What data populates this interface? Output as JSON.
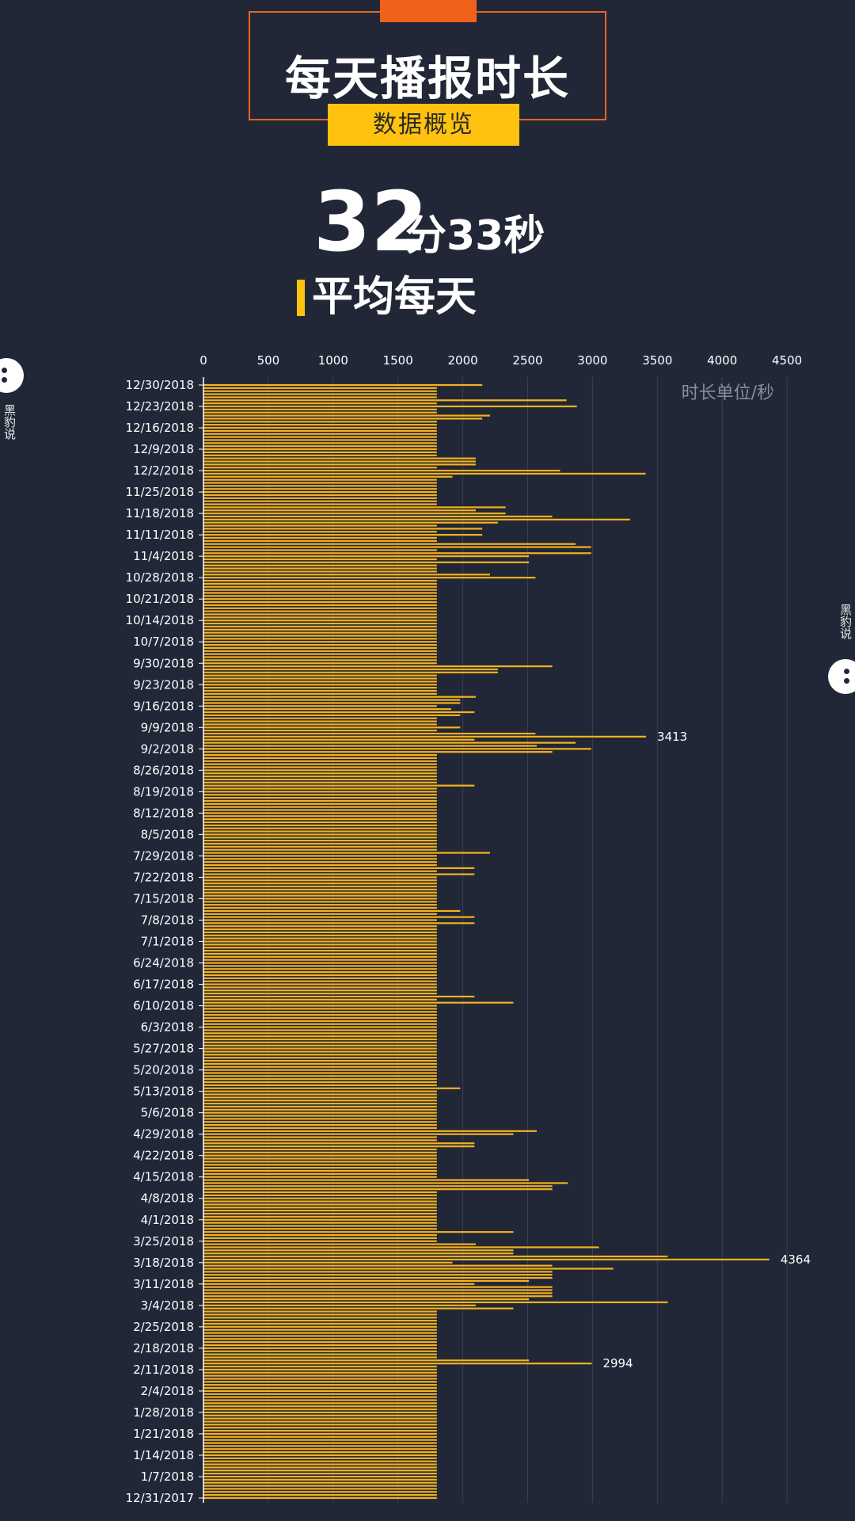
{
  "header": {
    "title": "每天播报时长",
    "subtitle": "数据概览"
  },
  "summary": {
    "minutes": "32",
    "rest": "分33秒",
    "label": "平均每天"
  },
  "watermark": "黑豹说",
  "colors": {
    "background": "#212737",
    "bar": "#f5b21b",
    "accent_orange": "#f0621c",
    "accent_yellow": "#ffc20e"
  },
  "chart_data": {
    "type": "bar",
    "orientation": "horizontal",
    "unit_label": "时长单位/秒",
    "x_ticks": [
      0,
      500,
      1000,
      1500,
      2000,
      2500,
      3000,
      3500,
      4000,
      4500
    ],
    "xlim": [
      0,
      4500
    ],
    "grid": true,
    "start_date": "12/31/2017",
    "end_date": "12/30/2018",
    "y_tick_labels": [
      "12/30/2018",
      "12/23/2018",
      "12/16/2018",
      "12/9/2018",
      "12/2/2018",
      "11/25/2018",
      "11/18/2018",
      "11/11/2018",
      "11/4/2018",
      "10/28/2018",
      "10/21/2018",
      "10/14/2018",
      "10/7/2018",
      "9/30/2018",
      "9/23/2018",
      "9/16/2018",
      "9/9/2018",
      "9/2/2018",
      "8/26/2018",
      "8/19/2018",
      "8/12/2018",
      "8/5/2018",
      "7/29/2018",
      "7/22/2018",
      "7/15/2018",
      "7/8/2018",
      "7/1/2018",
      "6/24/2018",
      "6/17/2018",
      "6/10/2018",
      "6/3/2018",
      "5/27/2018",
      "5/20/2018",
      "5/13/2018",
      "5/6/2018",
      "4/29/2018",
      "4/22/2018",
      "4/15/2018",
      "4/8/2018",
      "4/1/2018",
      "3/25/2018",
      "3/18/2018",
      "3/11/2018",
      "3/4/2018",
      "2/25/2018",
      "2/18/2018",
      "2/11/2018",
      "2/4/2018",
      "1/28/2018",
      "1/21/2018",
      "1/14/2018",
      "1/7/2018",
      "12/31/2017"
    ],
    "baseline_value": 1800,
    "exceptions": [
      {
        "date": "12/30/2018",
        "value": 2150
      },
      {
        "date": "12/25/2018",
        "value": 2800
      },
      {
        "date": "12/23/2018",
        "value": 2880
      },
      {
        "date": "12/20/2018",
        "value": 2210
      },
      {
        "date": "12/19/2018",
        "value": 2150
      },
      {
        "date": "12/6/2018",
        "value": 2100
      },
      {
        "date": "12/5/2018",
        "value": 2100
      },
      {
        "date": "12/4/2018",
        "value": 2100
      },
      {
        "date": "12/2/2018",
        "value": 2750
      },
      {
        "date": "12/1/2018",
        "value": 3410
      },
      {
        "date": "11/30/2018",
        "value": 1920
      },
      {
        "date": "11/20/2018",
        "value": 2330
      },
      {
        "date": "11/19/2018",
        "value": 2100
      },
      {
        "date": "11/18/2018",
        "value": 2330
      },
      {
        "date": "11/17/2018",
        "value": 2690
      },
      {
        "date": "11/16/2018",
        "value": 3290
      },
      {
        "date": "11/15/2018",
        "value": 2270
      },
      {
        "date": "11/13/2018",
        "value": 2150
      },
      {
        "date": "11/11/2018",
        "value": 2150
      },
      {
        "date": "11/8/2018",
        "value": 2870
      },
      {
        "date": "11/7/2018",
        "value": 2990
      },
      {
        "date": "11/5/2018",
        "value": 2990
      },
      {
        "date": "11/4/2018",
        "value": 2510
      },
      {
        "date": "11/2/2018",
        "value": 2510
      },
      {
        "date": "10/29/2018",
        "value": 2210
      },
      {
        "date": "10/28/2018",
        "value": 2560
      },
      {
        "date": "9/29/2018",
        "value": 2690
      },
      {
        "date": "9/28/2018",
        "value": 2270
      },
      {
        "date": "9/27/2018",
        "value": 2270
      },
      {
        "date": "9/19/2018",
        "value": 2100
      },
      {
        "date": "9/18/2018",
        "value": 1980
      },
      {
        "date": "9/17/2018",
        "value": 1980
      },
      {
        "date": "9/15/2018",
        "value": 1910
      },
      {
        "date": "9/14/2018",
        "value": 2090
      },
      {
        "date": "9/13/2018",
        "value": 1980
      },
      {
        "date": "9/9/2018",
        "value": 1980
      },
      {
        "date": "9/7/2018",
        "value": 2560
      },
      {
        "date": "9/6/2018",
        "value": 3413
      },
      {
        "date": "9/5/2018",
        "value": 2090
      },
      {
        "date": "9/4/2018",
        "value": 2870
      },
      {
        "date": "9/3/2018",
        "value": 2570
      },
      {
        "date": "9/2/2018",
        "value": 2990
      },
      {
        "date": "9/1/2018",
        "value": 2690
      },
      {
        "date": "8/21/2018",
        "value": 2090
      },
      {
        "date": "7/30/2018",
        "value": 2210
      },
      {
        "date": "7/25/2018",
        "value": 2090
      },
      {
        "date": "7/23/2018",
        "value": 2090
      },
      {
        "date": "7/11/2018",
        "value": 1980
      },
      {
        "date": "7/9/2018",
        "value": 2090
      },
      {
        "date": "7/7/2018",
        "value": 2090
      },
      {
        "date": "6/13/2018",
        "value": 2090
      },
      {
        "date": "6/11/2018",
        "value": 2390
      },
      {
        "date": "5/14/2018",
        "value": 1980
      },
      {
        "date": "4/30/2018",
        "value": 2570
      },
      {
        "date": "4/29/2018",
        "value": 2390
      },
      {
        "date": "4/26/2018",
        "value": 2090
      },
      {
        "date": "4/25/2018",
        "value": 2090
      },
      {
        "date": "4/14/2018",
        "value": 2510
      },
      {
        "date": "4/13/2018",
        "value": 2810
      },
      {
        "date": "4/12/2018",
        "value": 2690
      },
      {
        "date": "4/11/2018",
        "value": 2690
      },
      {
        "date": "3/28/2018",
        "value": 2390
      },
      {
        "date": "3/24/2018",
        "value": 2100
      },
      {
        "date": "3/23/2018",
        "value": 3050
      },
      {
        "date": "3/22/2018",
        "value": 2390
      },
      {
        "date": "3/21/2018",
        "value": 2390
      },
      {
        "date": "3/20/2018",
        "value": 3580
      },
      {
        "date": "3/19/2018",
        "value": 4364
      },
      {
        "date": "3/18/2018",
        "value": 1920
      },
      {
        "date": "3/17/2018",
        "value": 2690
      },
      {
        "date": "3/16/2018",
        "value": 3160
      },
      {
        "date": "3/15/2018",
        "value": 2690
      },
      {
        "date": "3/14/2018",
        "value": 2690
      },
      {
        "date": "3/13/2018",
        "value": 2690
      },
      {
        "date": "3/12/2018",
        "value": 2510
      },
      {
        "date": "3/11/2018",
        "value": 2090
      },
      {
        "date": "3/10/2018",
        "value": 2690
      },
      {
        "date": "3/9/2018",
        "value": 2690
      },
      {
        "date": "3/8/2018",
        "value": 2690
      },
      {
        "date": "3/7/2018",
        "value": 2690
      },
      {
        "date": "3/6/2018",
        "value": 2510
      },
      {
        "date": "3/5/2018",
        "value": 3580
      },
      {
        "date": "3/4/2018",
        "value": 2100
      },
      {
        "date": "3/3/2018",
        "value": 2390
      },
      {
        "date": "2/14/2018",
        "value": 2510
      },
      {
        "date": "2/13/2018",
        "value": 2994
      }
    ],
    "annotations": [
      {
        "date": "9/6/2018",
        "text": "3413"
      },
      {
        "date": "3/19/2018",
        "text": "4364"
      },
      {
        "date": "2/13/2018",
        "text": "2994"
      }
    ]
  }
}
